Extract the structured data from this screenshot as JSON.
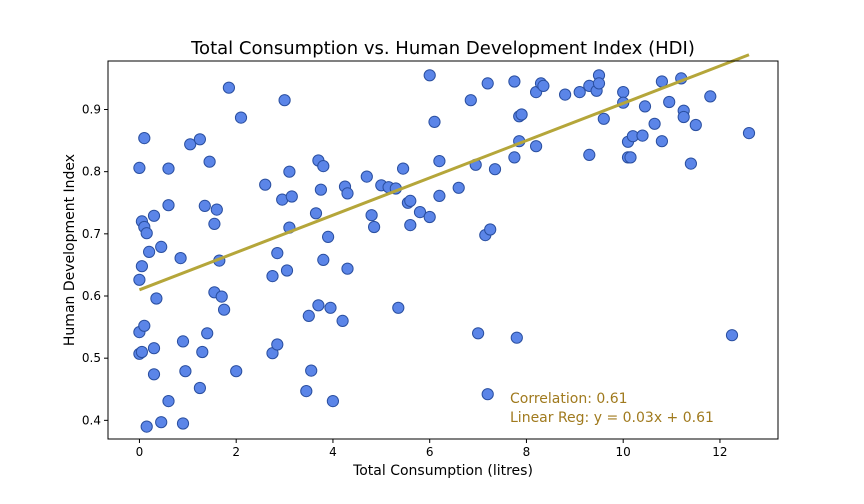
{
  "chart_data": {
    "type": "scatter",
    "title": "Total Consumption vs. Human Development Index (HDI)",
    "xlabel": "Total Consumption (litres)",
    "ylabel": "Human Development Index",
    "xlim": [
      -0.65,
      13.2
    ],
    "ylim": [
      0.37,
      0.978
    ],
    "xticks": [
      0,
      2,
      4,
      6,
      8,
      10,
      12
    ],
    "yticks": [
      0.4,
      0.5,
      0.6,
      0.7,
      0.8,
      0.9
    ],
    "ytick_labels": [
      "0.4",
      "0.5",
      "0.6",
      "0.7",
      "0.8",
      "0.9"
    ],
    "grid": false,
    "point_color": "#5b85e8",
    "point_edge_color": "#2a4fa0",
    "regression": {
      "slope": 0.03,
      "intercept": 0.61,
      "x_range": [
        0.0,
        12.6
      ],
      "color": "#b5a63a"
    },
    "annotation_color": "#a07a1e",
    "annotations": [
      "Correlation:  0.61",
      "Linear Reg:  y = 0.03x + 0.61"
    ],
    "points": [
      {
        "x": 0.0,
        "y": 0.626
      },
      {
        "x": 0.0,
        "y": 0.806
      },
      {
        "x": 0.0,
        "y": 0.542
      },
      {
        "x": 0.0,
        "y": 0.507
      },
      {
        "x": 0.05,
        "y": 0.72
      },
      {
        "x": 0.05,
        "y": 0.51
      },
      {
        "x": 0.05,
        "y": 0.648
      },
      {
        "x": 0.1,
        "y": 0.854
      },
      {
        "x": 0.1,
        "y": 0.711
      },
      {
        "x": 0.1,
        "y": 0.552
      },
      {
        "x": 0.15,
        "y": 0.701
      },
      {
        "x": 0.15,
        "y": 0.39
      },
      {
        "x": 0.2,
        "y": 0.671
      },
      {
        "x": 0.3,
        "y": 0.729
      },
      {
        "x": 0.3,
        "y": 0.516
      },
      {
        "x": 0.3,
        "y": 0.474
      },
      {
        "x": 0.35,
        "y": 0.596
      },
      {
        "x": 0.45,
        "y": 0.679
      },
      {
        "x": 0.45,
        "y": 0.397
      },
      {
        "x": 0.6,
        "y": 0.805
      },
      {
        "x": 0.6,
        "y": 0.746
      },
      {
        "x": 0.6,
        "y": 0.431
      },
      {
        "x": 0.85,
        "y": 0.661
      },
      {
        "x": 0.9,
        "y": 0.527
      },
      {
        "x": 0.9,
        "y": 0.395
      },
      {
        "x": 0.95,
        "y": 0.479
      },
      {
        "x": 1.05,
        "y": 0.844
      },
      {
        "x": 1.25,
        "y": 0.852
      },
      {
        "x": 1.25,
        "y": 0.452
      },
      {
        "x": 1.3,
        "y": 0.51
      },
      {
        "x": 1.35,
        "y": 0.745
      },
      {
        "x": 1.4,
        "y": 0.54
      },
      {
        "x": 1.45,
        "y": 0.816
      },
      {
        "x": 1.55,
        "y": 0.716
      },
      {
        "x": 1.55,
        "y": 0.606
      },
      {
        "x": 1.6,
        "y": 0.739
      },
      {
        "x": 1.65,
        "y": 0.657
      },
      {
        "x": 1.7,
        "y": 0.599
      },
      {
        "x": 1.75,
        "y": 0.578
      },
      {
        "x": 1.85,
        "y": 0.935
      },
      {
        "x": 2.0,
        "y": 0.479
      },
      {
        "x": 2.1,
        "y": 0.887
      },
      {
        "x": 2.6,
        "y": 0.779
      },
      {
        "x": 2.75,
        "y": 0.632
      },
      {
        "x": 2.75,
        "y": 0.508
      },
      {
        "x": 2.85,
        "y": 0.669
      },
      {
        "x": 2.85,
        "y": 0.522
      },
      {
        "x": 2.95,
        "y": 0.755
      },
      {
        "x": 3.0,
        "y": 0.915
      },
      {
        "x": 3.05,
        "y": 0.641
      },
      {
        "x": 3.1,
        "y": 0.71
      },
      {
        "x": 3.1,
        "y": 0.8
      },
      {
        "x": 3.15,
        "y": 0.76
      },
      {
        "x": 3.45,
        "y": 0.447
      },
      {
        "x": 3.5,
        "y": 0.568
      },
      {
        "x": 3.55,
        "y": 0.48
      },
      {
        "x": 3.65,
        "y": 0.733
      },
      {
        "x": 3.7,
        "y": 0.818
      },
      {
        "x": 3.7,
        "y": 0.585
      },
      {
        "x": 3.75,
        "y": 0.771
      },
      {
        "x": 3.8,
        "y": 0.809
      },
      {
        "x": 3.8,
        "y": 0.658
      },
      {
        "x": 3.9,
        "y": 0.695
      },
      {
        "x": 3.95,
        "y": 0.581
      },
      {
        "x": 4.0,
        "y": 0.431
      },
      {
        "x": 4.2,
        "y": 0.56
      },
      {
        "x": 4.25,
        "y": 0.776
      },
      {
        "x": 4.3,
        "y": 0.765
      },
      {
        "x": 4.3,
        "y": 0.644
      },
      {
        "x": 4.7,
        "y": 0.792
      },
      {
        "x": 4.8,
        "y": 0.73
      },
      {
        "x": 4.85,
        "y": 0.711
      },
      {
        "x": 5.0,
        "y": 0.778
      },
      {
        "x": 5.15,
        "y": 0.775
      },
      {
        "x": 5.3,
        "y": 0.773
      },
      {
        "x": 5.35,
        "y": 0.581
      },
      {
        "x": 5.45,
        "y": 0.805
      },
      {
        "x": 5.55,
        "y": 0.75
      },
      {
        "x": 5.6,
        "y": 0.753
      },
      {
        "x": 5.6,
        "y": 0.714
      },
      {
        "x": 5.8,
        "y": 0.735
      },
      {
        "x": 6.0,
        "y": 0.955
      },
      {
        "x": 6.0,
        "y": 0.727
      },
      {
        "x": 6.1,
        "y": 0.88
      },
      {
        "x": 6.2,
        "y": 0.817
      },
      {
        "x": 6.2,
        "y": 0.761
      },
      {
        "x": 6.6,
        "y": 0.774
      },
      {
        "x": 6.85,
        "y": 0.915
      },
      {
        "x": 6.95,
        "y": 0.811
      },
      {
        "x": 7.0,
        "y": 0.54
      },
      {
        "x": 7.15,
        "y": 0.698
      },
      {
        "x": 7.2,
        "y": 0.442
      },
      {
        "x": 7.2,
        "y": 0.942
      },
      {
        "x": 7.25,
        "y": 0.707
      },
      {
        "x": 7.35,
        "y": 0.804
      },
      {
        "x": 7.75,
        "y": 0.945
      },
      {
        "x": 7.75,
        "y": 0.823
      },
      {
        "x": 7.8,
        "y": 0.533
      },
      {
        "x": 7.85,
        "y": 0.889
      },
      {
        "x": 7.85,
        "y": 0.849
      },
      {
        "x": 7.9,
        "y": 0.892
      },
      {
        "x": 8.2,
        "y": 0.928
      },
      {
        "x": 8.2,
        "y": 0.841
      },
      {
        "x": 8.3,
        "y": 0.942
      },
      {
        "x": 8.35,
        "y": 0.938
      },
      {
        "x": 8.8,
        "y": 0.924
      },
      {
        "x": 9.1,
        "y": 0.928
      },
      {
        "x": 9.3,
        "y": 0.938
      },
      {
        "x": 9.3,
        "y": 0.827
      },
      {
        "x": 9.45,
        "y": 0.93
      },
      {
        "x": 9.5,
        "y": 0.955
      },
      {
        "x": 9.5,
        "y": 0.942
      },
      {
        "x": 9.6,
        "y": 0.885
      },
      {
        "x": 10.0,
        "y": 0.928
      },
      {
        "x": 10.0,
        "y": 0.911
      },
      {
        "x": 10.1,
        "y": 0.848
      },
      {
        "x": 10.1,
        "y": 0.823
      },
      {
        "x": 10.15,
        "y": 0.823
      },
      {
        "x": 10.2,
        "y": 0.857
      },
      {
        "x": 10.4,
        "y": 0.858
      },
      {
        "x": 10.45,
        "y": 0.905
      },
      {
        "x": 10.65,
        "y": 0.877
      },
      {
        "x": 10.8,
        "y": 0.945
      },
      {
        "x": 10.8,
        "y": 0.849
      },
      {
        "x": 10.95,
        "y": 0.912
      },
      {
        "x": 11.2,
        "y": 0.95
      },
      {
        "x": 11.25,
        "y": 0.898
      },
      {
        "x": 11.25,
        "y": 0.888
      },
      {
        "x": 11.4,
        "y": 0.813
      },
      {
        "x": 11.5,
        "y": 0.875
      },
      {
        "x": 11.8,
        "y": 0.921
      },
      {
        "x": 12.25,
        "y": 0.537
      },
      {
        "x": 12.6,
        "y": 0.862
      }
    ]
  }
}
